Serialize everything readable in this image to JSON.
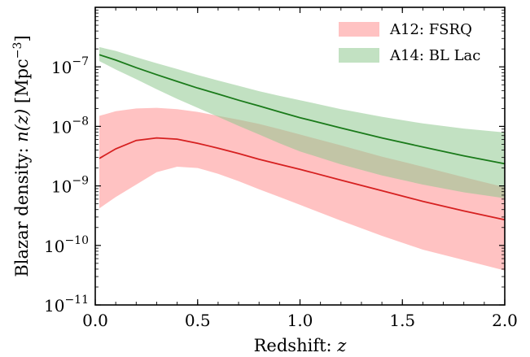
{
  "chart_data": {
    "type": "area",
    "xlabel_text": "Redshift: ",
    "xlabel_var": "z",
    "ylabel_text": "Blazar density: ",
    "ylabel_var": "n(z)",
    "ylabel_unit_open": " [Mpc",
    "ylabel_unit_exp": "−3",
    "ylabel_unit_close": "]",
    "xlim": [
      0.0,
      2.0
    ],
    "ylim": [
      1e-11,
      1e-06
    ],
    "yscale": "log",
    "xticks": [
      0.0,
      0.5,
      1.0,
      1.5,
      2.0
    ],
    "xtick_labels": [
      "0.0",
      "0.5",
      "1.0",
      "1.5",
      "2.0"
    ],
    "yticks": [
      1e-10,
      1e-09,
      1e-08,
      1e-07,
      1e-11
    ],
    "ytick_labels": [
      {
        "base": "10",
        "exp": "−10"
      },
      {
        "base": "10",
        "exp": "−9"
      },
      {
        "base": "10",
        "exp": "−8"
      },
      {
        "base": "10",
        "exp": "−7"
      },
      {
        "base": "10",
        "exp": "−11"
      }
    ],
    "legend_position": "top-right",
    "series": [
      {
        "name": "A12: FSRQ",
        "line_color": "#d62020",
        "fill_color": "#ff9a9a",
        "fill_opacity": 0.6,
        "x": [
          0.02,
          0.1,
          0.2,
          0.3,
          0.4,
          0.5,
          0.6,
          0.7,
          0.8,
          0.9,
          1.0,
          1.2,
          1.4,
          1.6,
          1.8,
          2.0
        ],
        "y": [
          2.9e-09,
          4.2e-09,
          5.8e-09,
          6.4e-09,
          6.1e-09,
          5.2e-09,
          4.3e-09,
          3.5e-09,
          2.8e-09,
          2.3e-09,
          1.9e-09,
          1.25e-09,
          8.3e-10,
          5.5e-10,
          3.8e-10,
          2.7e-10
        ],
        "upper": [
          1.5e-08,
          1.8e-08,
          2e-08,
          2.05e-08,
          1.95e-08,
          1.75e-08,
          1.5e-08,
          1.3e-08,
          1.1e-08,
          9e-09,
          7.3e-09,
          4.8e-09,
          3.1e-09,
          2.1e-09,
          1.4e-09,
          9.5e-10
        ],
        "lower": [
          4.2e-10,
          6.5e-10,
          1.05e-09,
          1.7e-09,
          2.1e-09,
          2e-09,
          1.6e-09,
          1.2e-09,
          8.8e-10,
          6.5e-10,
          4.8e-10,
          2.6e-10,
          1.45e-10,
          8.5e-11,
          5.7e-11,
          3.8e-11
        ]
      },
      {
        "name": "A14: BL Lac",
        "line_color": "#1a7a1a",
        "fill_color": "#8fc98f",
        "fill_opacity": 0.55,
        "x": [
          0.02,
          0.1,
          0.2,
          0.3,
          0.4,
          0.5,
          0.6,
          0.7,
          0.8,
          0.9,
          1.0,
          1.2,
          1.4,
          1.6,
          1.8,
          2.0
        ],
        "y": [
          1.6e-07,
          1.3e-07,
          9.7e-08,
          7.4e-08,
          5.7e-08,
          4.4e-08,
          3.5e-08,
          2.75e-08,
          2.2e-08,
          1.75e-08,
          1.4e-08,
          9.4e-09,
          6.4e-09,
          4.5e-09,
          3.2e-09,
          2.35e-09
        ],
        "upper": [
          2.15e-07,
          1.85e-07,
          1.45e-07,
          1.15e-07,
          9.2e-08,
          7.3e-08,
          5.9e-08,
          4.8e-08,
          3.9e-08,
          3.25e-08,
          2.75e-08,
          1.95e-08,
          1.45e-08,
          1.12e-08,
          9.2e-09,
          7.9e-09
        ],
        "lower": [
          1.25e-07,
          9e-08,
          6.2e-08,
          4.2e-08,
          2.9e-08,
          2.05e-08,
          1.45e-08,
          1.02e-08,
          7.3e-09,
          5.2e-09,
          3.8e-09,
          2.3e-09,
          1.5e-09,
          1.05e-09,
          7.8e-10,
          6.2e-10
        ]
      }
    ]
  }
}
